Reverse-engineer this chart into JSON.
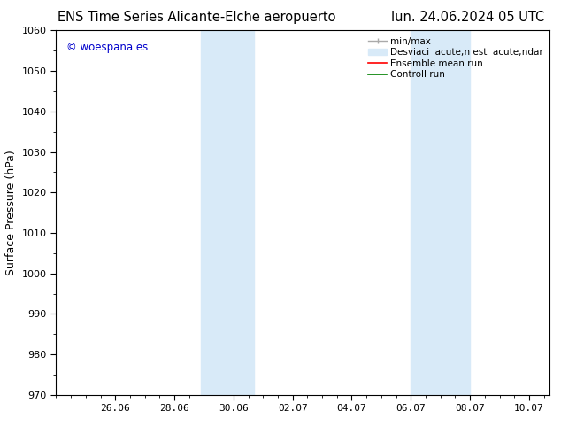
{
  "title_left": "ENS Time Series Alicante-Elche aeropuerto",
  "title_right": "lun. 24.06.2024 05 UTC",
  "ylabel": "Surface Pressure (hPa)",
  "ylim": [
    970,
    1060
  ],
  "yticks": [
    970,
    980,
    990,
    1000,
    1010,
    1020,
    1030,
    1040,
    1050,
    1060
  ],
  "xtick_labels": [
    "26.06",
    "28.06",
    "30.06",
    "02.07",
    "04.07",
    "06.07",
    "08.07",
    "10.07"
  ],
  "xtick_pos": [
    2,
    4,
    6,
    8,
    10,
    12,
    14,
    16
  ],
  "xlim": [
    0,
    16.7
  ],
  "band1_x0": 4.9,
  "band1_x1": 6.7,
  "band2_x0": 12.0,
  "band2_x1": 14.0,
  "shaded_color": "#d8eaf8",
  "watermark_text": "© woespana.es",
  "watermark_color": "#0000cc",
  "background_color": "#ffffff",
  "title_fontsize": 10.5,
  "axis_fontsize": 9,
  "tick_fontsize": 8,
  "legend_fontsize": 7.5,
  "legend_label1": "min/max",
  "legend_label2": "Desviaci  acute;n est  acute;ndar",
  "legend_label3": "Ensemble mean run",
  "legend_label4": "Controll run",
  "legend_color1": "#aaaaaa",
  "legend_color2": "#d8eaf8",
  "legend_color3": "#ff0000",
  "legend_color4": "#008000"
}
